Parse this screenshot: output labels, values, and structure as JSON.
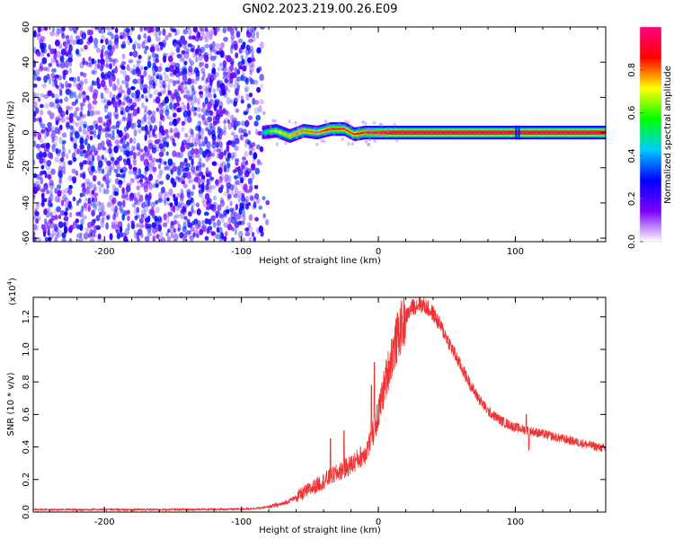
{
  "title": "GN02.2023.219.00.26.E09",
  "chart_data": [
    {
      "type": "heatmap",
      "xlabel": "Height of straight line (km)",
      "ylabel": "Frequency (Hz)",
      "xlim": [
        -252,
        166
      ],
      "ylim": [
        -62,
        60
      ],
      "x_ticks": [
        -200,
        -100,
        0,
        100
      ],
      "x_tick_labels": [
        "-200",
        "-100",
        "0",
        "100"
      ],
      "y_ticks": [
        -60,
        -40,
        -20,
        0,
        20,
        40,
        60
      ],
      "y_tick_labels": [
        "-60",
        "-40",
        "-20",
        "0",
        "20",
        "40",
        "60"
      ],
      "colorbar": {
        "label": "Normalized spectral amplitude",
        "range": [
          0,
          1
        ],
        "ticks": [
          0.0,
          0.2,
          0.4,
          0.6,
          0.8
        ],
        "tick_labels": [
          "0.0",
          "0.2",
          "0.4",
          "0.6",
          "0.8"
        ],
        "colormap": [
          "#ffffff",
          "#7b00ff",
          "#0000ff",
          "#00ccff",
          "#00ff00",
          "#ffff00",
          "#ff0000",
          "#ff0080"
        ]
      },
      "noise_region": {
        "x_range": [
          -252,
          -80
        ],
        "amplitude": [
          0.05,
          0.3
        ]
      },
      "signal_ridge": [
        {
          "x": -85,
          "freq": 0,
          "amp": 0.5
        },
        {
          "x": -75,
          "freq": 1,
          "amp": 0.7
        },
        {
          "x": -65,
          "freq": -2,
          "amp": 0.75
        },
        {
          "x": -55,
          "freq": 1,
          "amp": 0.8
        },
        {
          "x": -45,
          "freq": 0,
          "amp": 0.8
        },
        {
          "x": -35,
          "freq": 2,
          "amp": 0.9
        },
        {
          "x": -25,
          "freq": 2,
          "amp": 0.85
        },
        {
          "x": -18,
          "freq": -1,
          "amp": 0.85
        },
        {
          "x": -10,
          "freq": 0,
          "amp": 0.9
        },
        {
          "x": 0,
          "freq": 0,
          "amp": 0.95
        },
        {
          "x": 10,
          "freq": 0,
          "amp": 1.0
        },
        {
          "x": 166,
          "freq": 0,
          "amp": 1.0
        }
      ]
    },
    {
      "type": "line",
      "xlabel": "Height of straight line (km)",
      "ylabel": "SNR (10 * v/v)",
      "y_multiplier": "(x10",
      "y_multiplier_exp": "4",
      "y_multiplier_close": ")",
      "xlim": [
        -252,
        166
      ],
      "ylim": [
        0,
        1.32
      ],
      "x_ticks": [
        -200,
        -100,
        0,
        100
      ],
      "x_tick_labels": [
        "-200",
        "-100",
        "0",
        "100"
      ],
      "y_ticks": [
        0.0,
        0.2,
        0.4,
        0.6,
        0.8,
        1.0,
        1.2
      ],
      "y_tick_labels": [
        "0.0",
        "0.2",
        "0.4",
        "0.6",
        "0.8",
        "1.0",
        "1.2"
      ],
      "color": "#ee3333",
      "series": [
        {
          "x": [
            -252,
            -200,
            -150,
            -100,
            -85,
            -70,
            -60,
            -50,
            -40,
            -30,
            -20,
            -10,
            -5,
            0,
            5,
            10,
            15,
            20,
            25,
            30,
            35,
            40,
            45,
            50,
            60,
            70,
            80,
            90,
            100,
            110,
            120,
            130,
            140,
            150,
            160,
            166
          ],
          "values": [
            0.015,
            0.015,
            0.015,
            0.018,
            0.025,
            0.05,
            0.09,
            0.14,
            0.19,
            0.24,
            0.29,
            0.36,
            0.45,
            0.6,
            0.8,
            0.97,
            1.1,
            1.2,
            1.26,
            1.28,
            1.26,
            1.22,
            1.15,
            1.07,
            0.9,
            0.74,
            0.62,
            0.56,
            0.52,
            0.5,
            0.48,
            0.46,
            0.44,
            0.42,
            0.4,
            0.39
          ]
        }
      ],
      "spikes": [
        {
          "x": -35,
          "value": 0.45
        },
        {
          "x": -25,
          "value": 0.5
        },
        {
          "x": -5,
          "value": 0.78
        },
        {
          "x": -3,
          "value": 0.92
        },
        {
          "x": 30,
          "value": 1.32
        },
        {
          "x": 108,
          "value": 0.6
        },
        {
          "x": 110,
          "value": 0.38
        }
      ]
    }
  ]
}
